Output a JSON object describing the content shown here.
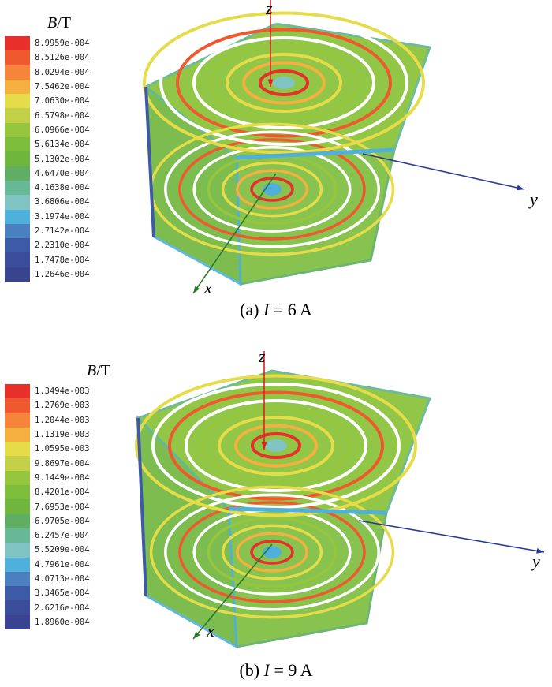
{
  "legend_title_symbol": "B",
  "legend_title_unit": "/T",
  "axes": {
    "x": "x",
    "y": "y",
    "z": "z"
  },
  "axis_colors": {
    "x": "#2a7a2a",
    "y": "#2a3a9a",
    "z": "#e02020"
  },
  "colormap": [
    "#e8302a",
    "#ee5a2e",
    "#f4853a",
    "#f6b040",
    "#e6dc4a",
    "#c2d148",
    "#96c63e",
    "#7cbd3c",
    "#6fb63e",
    "#5fae63",
    "#66b896",
    "#7fc4c2",
    "#4fb0dc",
    "#4a7fc0",
    "#3c5aa6",
    "#3a4c9a",
    "#3a4390"
  ],
  "panels": [
    {
      "caption_prefix": "(a) ",
      "caption_var": "I",
      "caption_value": " = 6 A",
      "legend_values": [
        "8.9959e-004",
        "8.5126e-004",
        "8.0294e-004",
        "7.5462e-004",
        "7.0630e-004",
        "6.5798e-004",
        "6.0966e-004",
        "5.6134e-004",
        "5.1302e-004",
        "4.6470e-004",
        "4.1638e-004",
        "3.6806e-004",
        "3.1974e-004",
        "2.7142e-004",
        "2.2310e-004",
        "1.7478e-004",
        "1.2646e-004"
      ]
    },
    {
      "caption_prefix": "(b) ",
      "caption_var": "I",
      "caption_value": " = 9 A",
      "legend_values": [
        "1.3494e-003",
        "1.2769e-003",
        "1.2044e-003",
        "1.1319e-003",
        "1.0595e-003",
        "9.8697e-004",
        "9.1449e-004",
        "8.4201e-004",
        "7.6953e-004",
        "6.9705e-004",
        "6.2457e-004",
        "5.5209e-004",
        "4.7961e-004",
        "4.0713e-004",
        "3.3465e-004",
        "2.6216e-004",
        "1.8960e-004"
      ]
    }
  ]
}
